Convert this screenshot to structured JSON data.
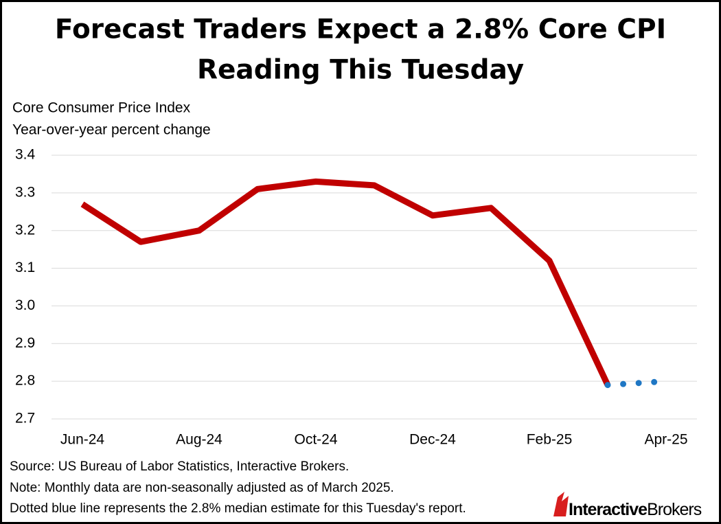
{
  "chart_data": {
    "type": "line",
    "title": [
      "Forecast Traders Expect a 2.8% Core CPI",
      "Reading This Tuesday"
    ],
    "y_axis_label": [
      "Core Consumer Price Index",
      "Year-over-year percent change"
    ],
    "categories": [
      "Jun-24",
      null,
      "Aug-24",
      null,
      "Oct-24",
      null,
      "Dec-24",
      null,
      "Feb-25",
      null,
      "Apr-25"
    ],
    "series": [
      {
        "color": "#c00000",
        "style": "solid",
        "values": [
          3.27,
          3.17,
          3.2,
          3.31,
          3.33,
          3.32,
          3.24,
          3.26,
          3.12,
          2.79,
          null
        ]
      },
      {
        "color": "#1f77c4",
        "style": "dotted",
        "values": [
          null,
          null,
          null,
          null,
          null,
          null,
          null,
          null,
          null,
          2.79,
          2.8
        ]
      }
    ],
    "ylim": [
      2.7,
      3.4
    ],
    "yticks": [
      2.7,
      2.8,
      2.9,
      {
        "value": 3,
        "label": "3.0"
      },
      3.1,
      3.2,
      3.3,
      3.4
    ],
    "grid": true,
    "notes": [
      "Source: US Bureau of Labor Statistics, Interactive Brokers.",
      "Note: Monthly data are non-seasonally adjusted as of March 2025.",
      "Dotted blue line represents the 2.8% median estimate for this Tuesday's report."
    ],
    "logo": [
      "Interactive",
      "Brokers"
    ]
  }
}
